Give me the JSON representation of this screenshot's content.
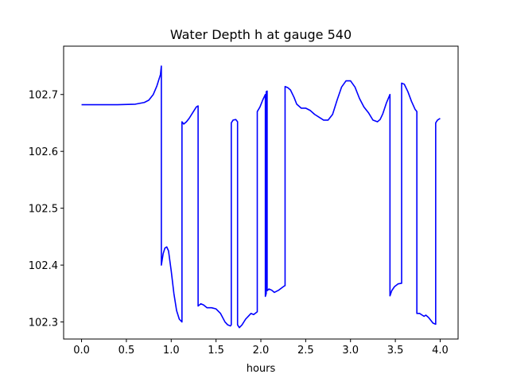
{
  "chart_data": {
    "type": "line",
    "title": "Water Depth h at gauge 540",
    "xlabel": "hours",
    "ylabel": "",
    "xlim": [
      -0.2,
      4.2
    ],
    "ylim": [
      102.27,
      102.785
    ],
    "xticks": [
      0.0,
      0.5,
      1.0,
      1.5,
      2.0,
      2.5,
      3.0,
      3.5,
      4.0
    ],
    "xtick_labels": [
      "0.0",
      "0.5",
      "1.0",
      "1.5",
      "2.0",
      "2.5",
      "3.0",
      "3.5",
      "4.0"
    ],
    "yticks": [
      102.3,
      102.4,
      102.5,
      102.6,
      102.7
    ],
    "ytick_labels": [
      "102.3",
      "102.4",
      "102.5",
      "102.6",
      "102.7"
    ],
    "grid": false,
    "series": [
      {
        "color": "#0000ff",
        "x": [
          0.0,
          0.2,
          0.4,
          0.6,
          0.7,
          0.75,
          0.8,
          0.84,
          0.88,
          0.89,
          0.89,
          0.91,
          0.93,
          0.95,
          0.97,
          1.0,
          1.03,
          1.06,
          1.09,
          1.12,
          1.12,
          1.14,
          1.17,
          1.2,
          1.24,
          1.28,
          1.3,
          1.3,
          1.33,
          1.36,
          1.4,
          1.45,
          1.5,
          1.55,
          1.6,
          1.63,
          1.66,
          1.67,
          1.67,
          1.69,
          1.72,
          1.74,
          1.74,
          1.76,
          1.79,
          1.83,
          1.86,
          1.89,
          1.92,
          1.96,
          1.96,
          1.99,
          2.02,
          2.05,
          2.05,
          2.06,
          2.06,
          2.07,
          2.07,
          2.09,
          2.12,
          2.15,
          2.2,
          2.25,
          2.27,
          2.27,
          2.3,
          2.33,
          2.37,
          2.4,
          2.45,
          2.5,
          2.55,
          2.6,
          2.65,
          2.7,
          2.75,
          2.8,
          2.85,
          2.9,
          2.95,
          3.0,
          3.05,
          3.1,
          3.15,
          3.2,
          3.25,
          3.3,
          3.33,
          3.36,
          3.4,
          3.44,
          3.44,
          3.46,
          3.49,
          3.53,
          3.57,
          3.57,
          3.6,
          3.64,
          3.68,
          3.72,
          3.74,
          3.74,
          3.77,
          3.8,
          3.82,
          3.84,
          3.87,
          3.9,
          3.92,
          3.95,
          3.95,
          3.97,
          4.0
        ],
        "y": [
          102.682,
          102.682,
          102.682,
          102.683,
          102.686,
          102.69,
          102.7,
          102.715,
          102.735,
          102.75,
          102.4,
          102.42,
          102.43,
          102.432,
          102.425,
          102.39,
          102.35,
          102.32,
          102.305,
          102.3,
          102.652,
          102.648,
          102.652,
          102.658,
          102.668,
          102.678,
          102.68,
          102.328,
          102.332,
          102.33,
          102.325,
          102.325,
          102.323,
          102.315,
          102.3,
          102.295,
          102.293,
          102.295,
          102.65,
          102.655,
          102.656,
          102.652,
          102.295,
          102.29,
          102.295,
          102.305,
          102.31,
          102.315,
          102.313,
          102.318,
          102.67,
          102.678,
          102.69,
          102.7,
          102.345,
          102.35,
          102.705,
          102.706,
          102.355,
          102.358,
          102.356,
          102.352,
          102.356,
          102.362,
          102.364,
          102.714,
          102.712,
          102.708,
          102.695,
          102.683,
          102.676,
          102.676,
          102.672,
          102.665,
          102.66,
          102.655,
          102.655,
          102.665,
          102.69,
          102.713,
          102.724,
          102.724,
          102.713,
          102.693,
          102.678,
          102.668,
          102.655,
          102.652,
          102.656,
          102.666,
          102.685,
          102.7,
          102.346,
          102.355,
          102.362,
          102.367,
          102.368,
          102.72,
          102.718,
          102.705,
          102.688,
          102.674,
          102.67,
          102.315,
          102.315,
          102.312,
          102.31,
          102.312,
          102.308,
          102.302,
          102.298,
          102.296,
          102.65,
          102.655,
          102.658
        ]
      }
    ]
  }
}
